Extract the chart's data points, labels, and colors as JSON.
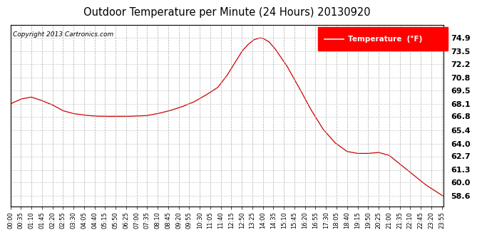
{
  "title": "Outdoor Temperature per Minute (24 Hours) 20130920",
  "copyright_text": "Copyright 2013 Cartronics.com",
  "legend_label": "Temperature  (°F)",
  "line_color": "#cc0000",
  "background_color": "#ffffff",
  "plot_bg_color": "#ffffff",
  "grid_color": "#bbbbbb",
  "ylabel_values": [
    58.6,
    60.0,
    61.3,
    62.7,
    64.0,
    65.4,
    66.8,
    68.1,
    69.5,
    70.8,
    72.2,
    73.5,
    74.9
  ],
  "ylim": [
    57.5,
    76.2
  ],
  "x_tick_labels": [
    "00:00",
    "00:35",
    "01:10",
    "01:45",
    "02:20",
    "02:55",
    "03:30",
    "04:05",
    "04:40",
    "05:15",
    "05:50",
    "06:25",
    "07:00",
    "07:35",
    "08:10",
    "08:45",
    "09:20",
    "09:55",
    "10:30",
    "11:05",
    "11:40",
    "12:15",
    "12:50",
    "13:25",
    "14:00",
    "14:35",
    "15:10",
    "15:45",
    "16:20",
    "16:55",
    "17:30",
    "18:05",
    "18:40",
    "19:15",
    "19:50",
    "20:25",
    "21:00",
    "21:35",
    "22:10",
    "22:45",
    "23:20",
    "23:55"
  ],
  "key_x_points": [
    0,
    35,
    70,
    100,
    140,
    175,
    210,
    245,
    280,
    315,
    350,
    385,
    420,
    455,
    490,
    530,
    570,
    610,
    650,
    690,
    720,
    750,
    770,
    790,
    810,
    830,
    840,
    860,
    880,
    920,
    960,
    1000,
    1040,
    1080,
    1120,
    1155,
    1190,
    1225,
    1260,
    1300,
    1340,
    1380,
    1420,
    1440
  ],
  "key_y_points": [
    68.1,
    68.6,
    68.8,
    68.5,
    68.0,
    67.4,
    67.1,
    66.95,
    66.85,
    66.82,
    66.82,
    66.82,
    66.85,
    66.9,
    67.1,
    67.4,
    67.8,
    68.3,
    69.0,
    69.8,
    71.0,
    72.5,
    73.5,
    74.2,
    74.7,
    74.9,
    74.85,
    74.5,
    73.8,
    72.0,
    69.8,
    67.5,
    65.5,
    64.1,
    63.2,
    63.0,
    63.0,
    63.1,
    62.8,
    61.8,
    60.8,
    59.8,
    59.0,
    58.6
  ]
}
